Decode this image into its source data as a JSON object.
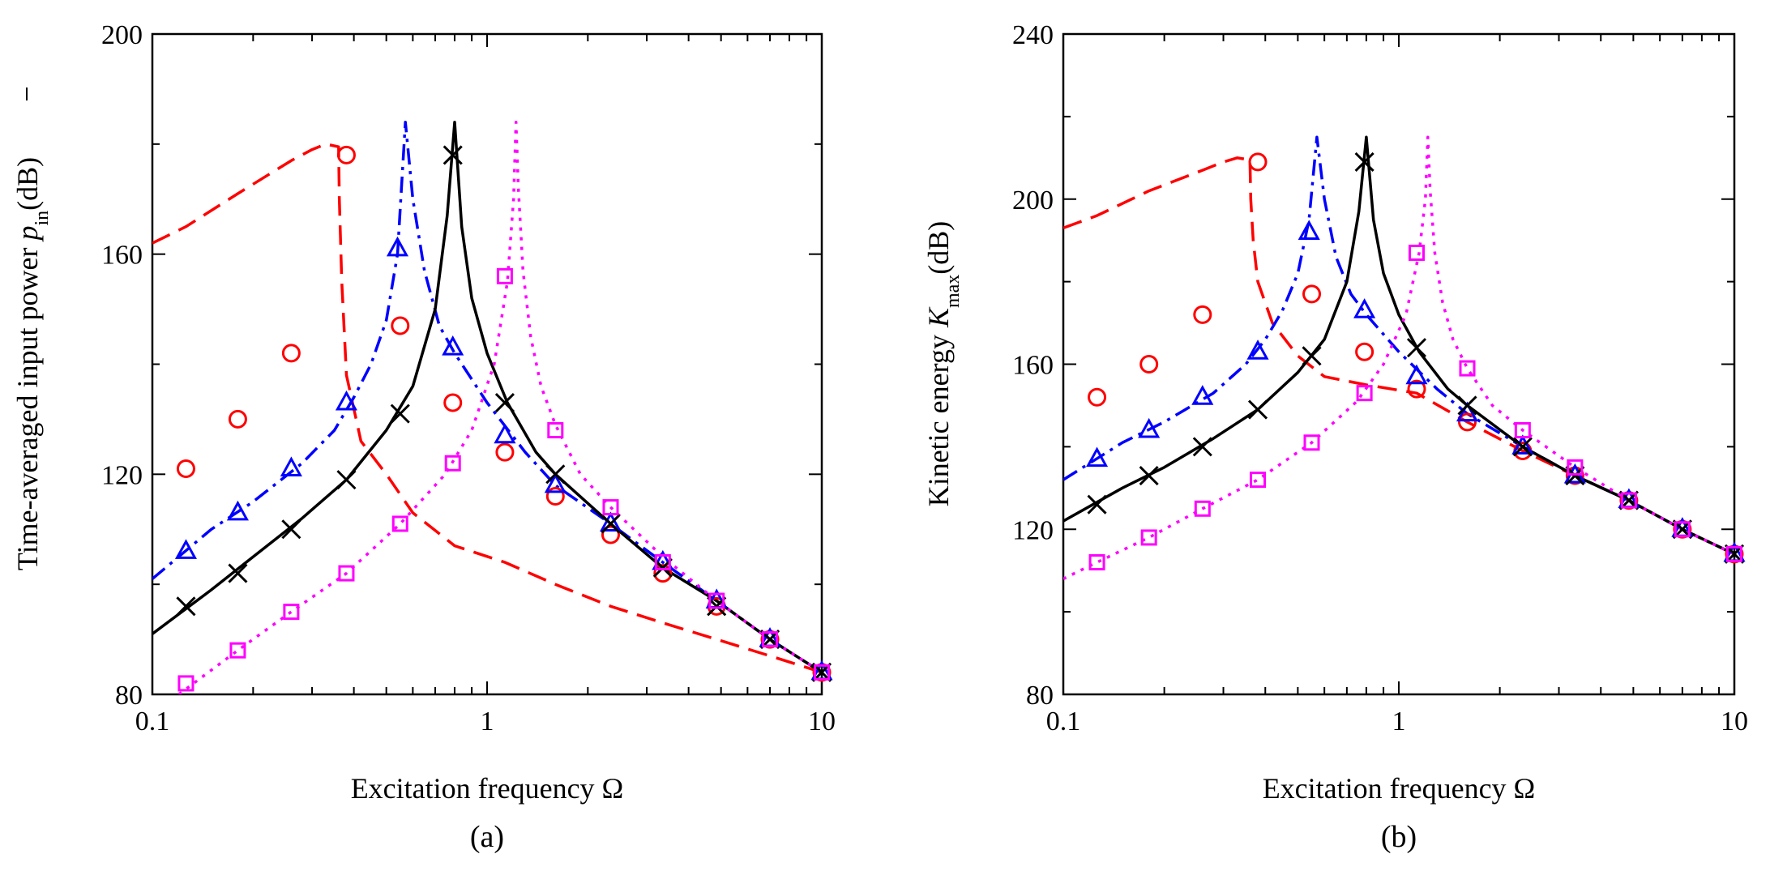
{
  "chart_data": [
    {
      "type": "line",
      "panel_label": "(a)",
      "xlabel": "Excitation frequency Ω",
      "ylabel_main": "Time-averaged input power ",
      "ylabel_symbol": "p",
      "ylabel_subscript": "in",
      "ylabel_unit": "(dB)",
      "xscale": "log",
      "xlim": [
        0.1,
        10
      ],
      "ylim": [
        80,
        200
      ],
      "x_tick_labels": [
        "0.1",
        "1",
        "10"
      ],
      "y_tick_labels": [
        "80",
        "120",
        "160",
        "200"
      ],
      "grid": false,
      "series": [
        {
          "style": "dashed",
          "color": "#ff0000",
          "marker": "circle",
          "x": [
            0.1,
            0.126,
            0.18,
            0.26,
            0.3,
            0.33,
            0.36,
            0.362,
            0.368,
            0.38,
            0.42,
            0.5,
            0.6,
            0.8,
            1.13,
            1.6,
            2.34,
            3.35,
            4.85,
            7.0,
            10
          ],
          "y": [
            162,
            165,
            171,
            177,
            179,
            180,
            179.5,
            170,
            155,
            138,
            126,
            120,
            113,
            107,
            104,
            100,
            96,
            93,
            90,
            87,
            84
          ],
          "marker_x": [
            0.126,
            0.18,
            0.26,
            0.38,
            0.55,
            0.79,
            1.13,
            1.6,
            2.34,
            3.35,
            4.85,
            7.0,
            10
          ],
          "marker_y": [
            121,
            130,
            142,
            178,
            147,
            133,
            124,
            116,
            109,
            102,
            96,
            90,
            84
          ]
        },
        {
          "style": "dashdot",
          "color": "#0000ff",
          "marker": "triangle",
          "x": [
            0.1,
            0.15,
            0.2,
            0.28,
            0.35,
            0.4,
            0.45,
            0.5,
            0.54,
            0.57,
            0.6,
            0.65,
            0.72,
            0.8,
            1.0,
            1.3,
            1.6,
            2.34,
            3.35,
            4.85,
            7.0,
            10
          ],
          "y": [
            101,
            110,
            115,
            122,
            128,
            134,
            140,
            148,
            160,
            184,
            170,
            157,
            147,
            142,
            133,
            124,
            118,
            111,
            104,
            97,
            90,
            84
          ],
          "marker_x": [
            0.126,
            0.18,
            0.26,
            0.38,
            0.54,
            0.79,
            1.13,
            1.6,
            2.34,
            3.35,
            4.85,
            7.0,
            10
          ],
          "marker_y": [
            106,
            113,
            121,
            133,
            161,
            143,
            127,
            118,
            111,
            104,
            97,
            90,
            84
          ]
        },
        {
          "style": "solid",
          "color": "#000000",
          "marker": "x",
          "x": [
            0.1,
            0.15,
            0.2,
            0.28,
            0.38,
            0.5,
            0.6,
            0.7,
            0.76,
            0.8,
            0.84,
            0.9,
            1.0,
            1.15,
            1.4,
            1.6,
            2.34,
            3.35,
            4.85,
            7.0,
            10
          ],
          "y": [
            91,
            99,
            105,
            112,
            119,
            128,
            136,
            150,
            167,
            184,
            165,
            152,
            142,
            133,
            124,
            120,
            111,
            103,
            97,
            90,
            84
          ],
          "marker_x": [
            0.126,
            0.18,
            0.26,
            0.38,
            0.55,
            0.79,
            1.13,
            1.6,
            2.34,
            3.35,
            4.85,
            7.0,
            10
          ],
          "marker_y": [
            96,
            102,
            110,
            119,
            131,
            178,
            133,
            120,
            111,
            103,
            96,
            90,
            84
          ]
        },
        {
          "style": "dotted",
          "color": "#ff00ff",
          "marker": "square",
          "x": [
            0.12,
            0.18,
            0.26,
            0.38,
            0.55,
            0.75,
            0.9,
            1.05,
            1.15,
            1.2,
            1.22,
            1.24,
            1.28,
            1.35,
            1.45,
            1.6,
            1.9,
            2.34,
            3.35,
            4.85,
            7.0,
            10
          ],
          "y": [
            80,
            88,
            95,
            102,
            111,
            120,
            128,
            140,
            155,
            170,
            184,
            172,
            157,
            145,
            136,
            129,
            120,
            114,
            105,
            97,
            90,
            84
          ],
          "marker_x": [
            0.126,
            0.18,
            0.26,
            0.38,
            0.55,
            0.79,
            1.13,
            1.6,
            2.34,
            3.35,
            4.85,
            7.0,
            10
          ],
          "marker_y": [
            82,
            88,
            95,
            102,
            111,
            122,
            156,
            128,
            114,
            104,
            97,
            90,
            84
          ]
        }
      ]
    },
    {
      "type": "line",
      "panel_label": "(b)",
      "xlabel": "Excitation frequency Ω",
      "ylabel_main": "Kinetic energy ",
      "ylabel_symbol": "K",
      "ylabel_subscript": "max",
      "ylabel_unit": "(dB)",
      "xscale": "log",
      "xlim": [
        0.1,
        10
      ],
      "ylim": [
        80,
        240
      ],
      "x_tick_labels": [
        "0.1",
        "1",
        "10"
      ],
      "y_tick_labels": [
        "80",
        "120",
        "160",
        "200",
        "240"
      ],
      "grid": false,
      "series": [
        {
          "style": "dashed",
          "color": "#ff0000",
          "marker": "circle",
          "x": [
            0.1,
            0.126,
            0.18,
            0.26,
            0.3,
            0.33,
            0.36,
            0.362,
            0.368,
            0.38,
            0.42,
            0.5,
            0.6,
            0.8,
            1.13,
            1.6,
            2.34,
            3.35,
            4.85,
            7.0,
            10
          ],
          "y": [
            193,
            196,
            202,
            207,
            209,
            210,
            209.5,
            200,
            190,
            180,
            170,
            162,
            157,
            155,
            153,
            146,
            139,
            133,
            127,
            120,
            114
          ],
          "marker_x": [
            0.126,
            0.18,
            0.26,
            0.38,
            0.55,
            0.79,
            1.13,
            1.6,
            2.34,
            3.35,
            4.85,
            7.0,
            10
          ],
          "marker_y": [
            152,
            160,
            172,
            209,
            177,
            163,
            154,
            146,
            139,
            133,
            127,
            120,
            114
          ]
        },
        {
          "style": "dashdot",
          "color": "#0000ff",
          "marker": "triangle",
          "x": [
            0.1,
            0.15,
            0.2,
            0.28,
            0.35,
            0.4,
            0.45,
            0.5,
            0.54,
            0.57,
            0.6,
            0.65,
            0.72,
            0.8,
            1.0,
            1.3,
            1.6,
            2.34,
            3.35,
            4.85,
            7.0,
            10
          ],
          "y": [
            132,
            141,
            146,
            153,
            160,
            166,
            173,
            182,
            195,
            215,
            200,
            186,
            177,
            172,
            163,
            154,
            148,
            140,
            133,
            127,
            120,
            114
          ],
          "marker_x": [
            0.126,
            0.18,
            0.26,
            0.38,
            0.54,
            0.79,
            1.13,
            1.6,
            2.34,
            3.35,
            4.85,
            7.0,
            10
          ],
          "marker_y": [
            137,
            144,
            152,
            163,
            192,
            173,
            157,
            148,
            140,
            133,
            127,
            120,
            114
          ]
        },
        {
          "style": "solid",
          "color": "#000000",
          "marker": "x",
          "x": [
            0.1,
            0.15,
            0.2,
            0.28,
            0.38,
            0.5,
            0.6,
            0.7,
            0.76,
            0.8,
            0.84,
            0.9,
            1.0,
            1.15,
            1.4,
            1.6,
            2.34,
            3.35,
            4.85,
            7.0,
            10
          ],
          "y": [
            122,
            130,
            135,
            142,
            149,
            158,
            166,
            180,
            197,
            215,
            195,
            182,
            172,
            163,
            154,
            150,
            140,
            133,
            127,
            120,
            114
          ],
          "marker_x": [
            0.126,
            0.18,
            0.26,
            0.38,
            0.55,
            0.79,
            1.13,
            1.6,
            2.34,
            3.35,
            4.85,
            7.0,
            10
          ],
          "marker_y": [
            126,
            133,
            140,
            149,
            162,
            209,
            164,
            150,
            140,
            133,
            127,
            120,
            114
          ]
        },
        {
          "style": "dotted",
          "color": "#ff00ff",
          "marker": "square",
          "x": [
            0.1,
            0.126,
            0.18,
            0.26,
            0.38,
            0.55,
            0.75,
            0.9,
            1.05,
            1.15,
            1.2,
            1.22,
            1.24,
            1.28,
            1.35,
            1.45,
            1.6,
            1.9,
            2.34,
            3.35,
            4.85,
            7.0,
            10
          ],
          "y": [
            108,
            112,
            118,
            125,
            132,
            141,
            151,
            160,
            172,
            187,
            200,
            215,
            202,
            187,
            175,
            166,
            159,
            150,
            144,
            135,
            127,
            120,
            114
          ],
          "marker_x": [
            0.126,
            0.18,
            0.26,
            0.38,
            0.55,
            0.79,
            1.13,
            1.6,
            2.34,
            3.35,
            4.85,
            7.0,
            10
          ],
          "marker_y": [
            112,
            118,
            125,
            132,
            141,
            153,
            187,
            159,
            144,
            135,
            127,
            120,
            114
          ]
        }
      ]
    }
  ]
}
